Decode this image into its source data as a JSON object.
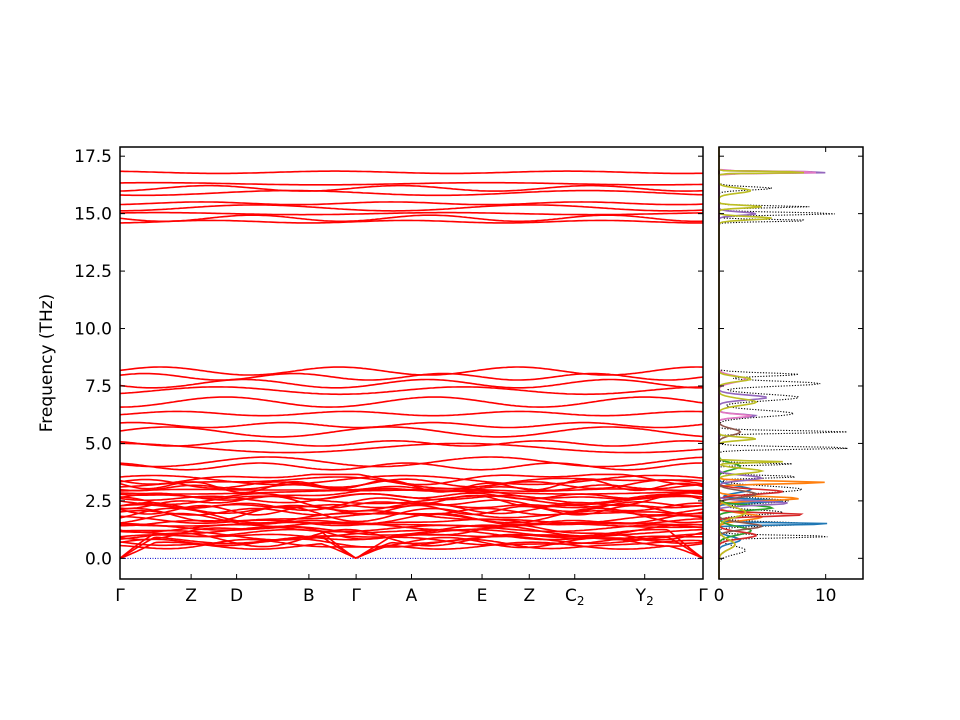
{
  "chart_data": [
    {
      "type": "line",
      "title": "",
      "xlabel": "",
      "ylabel": "Frequency (THz)",
      "ylim": [
        -0.9,
        17.9
      ],
      "yticks": [
        "0.0",
        "2.5",
        "5.0",
        "7.5",
        "10.0",
        "12.5",
        "15.0",
        "17.5"
      ],
      "ytick_values": [
        0,
        2.5,
        5,
        7.5,
        10,
        12.5,
        15,
        17.5
      ],
      "k_labels": [
        {
          "main": "Γ",
          "sub": ""
        },
        {
          "main": "Z",
          "sub": ""
        },
        {
          "main": "D",
          "sub": ""
        },
        {
          "main": "B",
          "sub": ""
        },
        {
          "main": "Γ",
          "sub": ""
        },
        {
          "main": "A",
          "sub": ""
        },
        {
          "main": "E",
          "sub": ""
        },
        {
          "main": "Z",
          "sub": ""
        },
        {
          "main": "C",
          "sub": "2"
        },
        {
          "main": "Y",
          "sub": "2"
        },
        {
          "main": "Γ",
          "sub": ""
        }
      ],
      "k_positions": [
        0,
        0.122,
        0.2,
        0.324,
        0.405,
        0.5,
        0.621,
        0.702,
        0.78,
        0.9,
        1.0
      ],
      "band_color": "#ff0000",
      "zero_line_color": "#0000cc",
      "band_clusters": {
        "acoustic_top_at_gamma": 0.0,
        "low_range": [
          0.0,
          3.6
        ],
        "mid_bands": [
          4.0,
          4.2,
          4.8,
          5.0,
          5.5,
          5.8,
          6.3,
          6.8,
          7.3,
          7.6,
          7.9,
          8.15
        ],
        "high_bands": [
          14.65,
          14.8,
          15.0,
          15.25,
          15.45,
          15.9,
          16.1,
          16.3,
          16.8
        ]
      }
    },
    {
      "type": "line",
      "title": "",
      "xlabel": "",
      "ylabel": "",
      "xlim": [
        0,
        13.5
      ],
      "xticks": [
        "0",
        "10"
      ],
      "xtick_values": [
        0,
        10
      ],
      "series": [
        {
          "color": "#000000",
          "style": "dotted"
        },
        {
          "color": "#1f77b4"
        },
        {
          "color": "#ff7f0e"
        },
        {
          "color": "#2ca02c"
        },
        {
          "color": "#d62728"
        },
        {
          "color": "#9467bd"
        },
        {
          "color": "#8c564b"
        },
        {
          "color": "#e377c2"
        },
        {
          "color": "#bcbd22"
        }
      ]
    }
  ]
}
